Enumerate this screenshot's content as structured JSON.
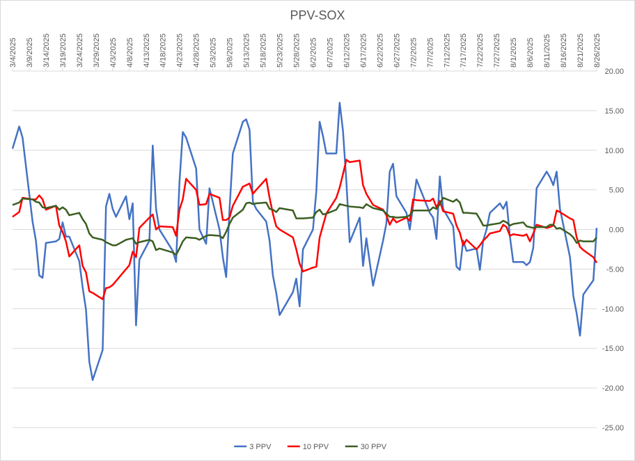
{
  "chart_data": {
    "type": "line",
    "title": "PPV-SOX",
    "x": [
      "3/4/2025",
      "3/6/2025",
      "3/7/2025",
      "3/10/2025",
      "3/11/2025",
      "3/12/2025",
      "3/13/2025",
      "3/14/2025",
      "3/17/2025",
      "3/18/2025",
      "3/19/2025",
      "3/20/2025",
      "3/21/2025",
      "3/24/2025",
      "3/25/2025",
      "3/26/2025",
      "3/27/2025",
      "3/28/2025",
      "3/31/2025",
      "4/1/2025",
      "4/2/2025",
      "4/3/2025",
      "4/4/2025",
      "4/7/2025",
      "4/8/2025",
      "4/9/2025",
      "4/10/2025",
      "4/11/2025",
      "4/14/2025",
      "4/15/2025",
      "4/16/2025",
      "4/17/2025",
      "4/21/2025",
      "4/22/2025",
      "4/23/2025",
      "4/24/2025",
      "4/25/2025",
      "4/28/2025",
      "4/29/2025",
      "5/1/2025",
      "5/2/2025",
      "5/5/2025",
      "5/6/2025",
      "5/7/2025",
      "5/8/2025",
      "5/9/2025",
      "5/12/2025",
      "5/13/2025",
      "5/14/2025",
      "5/15/2025",
      "5/16/2025",
      "5/19/2025",
      "5/20/2025",
      "5/21/2025",
      "5/22/2025",
      "5/23/2025",
      "5/27/2025",
      "5/28/2025",
      "5/29/2025",
      "5/30/2025",
      "6/2/2025",
      "6/3/2025",
      "6/4/2025",
      "6/5/2025",
      "6/6/2025",
      "6/9/2025",
      "6/10/2025",
      "6/11/2025",
      "6/12/2025",
      "6/13/2025",
      "6/16/2025",
      "6/17/2025",
      "6/18/2025",
      "6/20/2025",
      "6/23/2025",
      "6/24/2025",
      "6/25/2025",
      "6/26/2025",
      "6/27/2025",
      "6/30/2025",
      "7/1/2025",
      "7/2/2025",
      "7/3/2025",
      "7/7/2025",
      "7/8/2025",
      "7/9/2025",
      "7/10/2025",
      "7/11/2025",
      "7/14/2025",
      "7/15/2025",
      "7/16/2025",
      "7/17/2025",
      "7/18/2025",
      "7/21/2025",
      "7/22/2025",
      "7/23/2025",
      "7/24/2025",
      "7/25/2025",
      "7/28/2025",
      "7/29/2025",
      "7/30/2025",
      "7/31/2025",
      "8/1/2025",
      "8/4/2025",
      "8/5/2025",
      "8/6/2025",
      "8/7/2025",
      "8/8/2025",
      "8/11/2025",
      "8/12/2025",
      "8/13/2025",
      "8/14/2025",
      "8/15/2025",
      "8/18/2025",
      "8/19/2025",
      "8/20/2025",
      "8/21/2025",
      "8/22/2025",
      "8/25/2025",
      "8/26/2025"
    ],
    "series": [
      {
        "name": "3 PPV",
        "color": "#4472c4",
        "values": [
          10.2,
          13.0,
          11.6,
          1.0,
          -1.4,
          -5.8,
          -6.1,
          -1.7,
          -1.5,
          -1.2,
          0.9,
          -0.9,
          -0.9,
          -4.0,
          -7.3,
          -10.1,
          -16.7,
          -19.0,
          -15.2,
          2.9,
          4.5,
          2.6,
          1.6,
          4.2,
          1.3,
          3.3,
          -12.1,
          -3.8,
          -1.4,
          10.6,
          2.6,
          0.0,
          -2.7,
          -4.1,
          5.9,
          12.3,
          11.6,
          7.7,
          0.0,
          -1.8,
          5.2,
          0.0,
          -3.5,
          -6.0,
          2.5,
          9.6,
          13.6,
          13.9,
          12.6,
          3.5,
          2.6,
          1.0,
          -1.4,
          -5.8,
          -8.0,
          -10.8,
          -7.9,
          -6.2,
          -9.7,
          -2.5,
          0.0,
          4.8,
          13.6,
          11.8,
          9.6,
          9.6,
          16.0,
          12.4,
          6.1,
          -1.6,
          1.5,
          -4.6,
          -1.1,
          -7.1,
          -1.4,
          0.8,
          7.3,
          8.3,
          4.2,
          2.1,
          0.0,
          3.0,
          6.3,
          2.1,
          1.5,
          -1.2,
          6.7,
          2.6,
          0.4,
          -4.7,
          -5.1,
          -1.4,
          -2.7,
          -2.4,
          -5.1,
          -1.4,
          0.0,
          2.1,
          3.3,
          2.6,
          3.5,
          -0.9,
          -4.1,
          -4.1,
          -4.5,
          -4.1,
          -2.3,
          5.2,
          7.3,
          6.6,
          5.6,
          7.3,
          2.6,
          -3.5,
          -8.4,
          -10.6,
          -13.4,
          -8.2,
          -6.4,
          0.2
        ]
      },
      {
        "name": "10 PPV",
        "color": "#ff0000",
        "values": [
          1.6,
          2.2,
          4.0,
          3.8,
          3.8,
          4.3,
          3.8,
          2.5,
          3.0,
          0.5,
          -0.3,
          -1.5,
          -3.4,
          -2.0,
          -4.6,
          -5.4,
          -7.8,
          -8.0,
          -8.8,
          -7.4,
          -7.3,
          -7.0,
          -6.5,
          -5.0,
          -4.5,
          -2.8,
          -3.5,
          0.2,
          1.5,
          1.9,
          0.0,
          0.4,
          0.3,
          -0.8,
          2.5,
          3.8,
          6.4,
          5.0,
          3.1,
          3.2,
          4.5,
          4.0,
          1.2,
          1.2,
          1.5,
          3.0,
          5.4,
          5.6,
          5.8,
          4.5,
          5.0,
          6.4,
          4.0,
          2.0,
          0.4,
          0.0,
          -1.0,
          -2.5,
          -4.3,
          -5.3,
          -4.8,
          -4.7,
          -1.0,
          0.5,
          2.0,
          4.0,
          5.3,
          7.0,
          8.8,
          8.5,
          8.7,
          5.6,
          4.5,
          3.1,
          2.5,
          1.8,
          0.6,
          1.4,
          0.9,
          1.5,
          1.1,
          3.8,
          3.7,
          3.6,
          3.9,
          2.8,
          3.6,
          2.3,
          2.0,
          0.5,
          -0.4,
          -2.0,
          -1.3,
          -2.5,
          -2.0,
          -1.4,
          -1.0,
          -0.5,
          -0.2,
          0.6,
          0.3,
          -0.8,
          -0.6,
          -0.8,
          -0.6,
          -1.5,
          -0.5,
          0.6,
          0.2,
          0.3,
          0.5,
          2.4,
          2.2,
          1.4,
          1.2,
          -1.0,
          -2.2,
          -2.6,
          -3.5,
          -4.2
        ]
      },
      {
        "name": "30 PPV",
        "color": "#3b5e20",
        "values": [
          3.1,
          3.4,
          3.9,
          3.8,
          3.5,
          3.4,
          2.8,
          2.7,
          3.0,
          2.5,
          2.8,
          2.5,
          1.8,
          2.1,
          1.3,
          0.7,
          -0.5,
          -1.0,
          -1.3,
          -1.6,
          -1.8,
          -2.0,
          -2.0,
          -1.3,
          -1.2,
          -1.1,
          -1.8,
          -1.6,
          -1.3,
          -1.5,
          -2.6,
          -2.4,
          -2.9,
          -3.2,
          -2.4,
          -1.5,
          -1.0,
          -1.1,
          -1.3,
          -0.8,
          -0.7,
          -0.8,
          -1.1,
          -0.3,
          0.7,
          1.5,
          2.5,
          3.3,
          3.4,
          3.2,
          3.3,
          3.4,
          2.6,
          2.5,
          2.2,
          2.7,
          2.4,
          1.4,
          1.4,
          1.4,
          1.5,
          2.2,
          2.5,
          1.9,
          2.0,
          2.5,
          3.2,
          3.1,
          3.0,
          2.9,
          2.8,
          2.7,
          3.2,
          2.7,
          2.4,
          2.0,
          1.6,
          1.6,
          1.5,
          1.6,
          1.8,
          2.4,
          2.4,
          2.4,
          2.8,
          2.6,
          3.2,
          4.0,
          3.5,
          3.8,
          3.4,
          2.1,
          2.1,
          2.0,
          1.3,
          0.5,
          0.5,
          0.6,
          0.8,
          1.1,
          0.9,
          0.5,
          0.7,
          0.9,
          0.4,
          0.3,
          0.2,
          0.3,
          0.3,
          0.6,
          0.6,
          0.1,
          0.2,
          -0.6,
          -1.0,
          -1.7,
          -1.4,
          -1.5,
          -1.5,
          -1.0
        ]
      }
    ],
    "xlim": [
      "3/4/2025",
      "8/26/2025"
    ],
    "xticks": [
      "3/4/2025",
      "3/9/2025",
      "3/14/2025",
      "3/19/2025",
      "3/24/2025",
      "3/29/2025",
      "4/3/2025",
      "4/8/2025",
      "4/13/2025",
      "4/18/2025",
      "4/23/2025",
      "4/28/2025",
      "5/3/2025",
      "5/8/2025",
      "5/13/2025",
      "5/18/2025",
      "5/23/2025",
      "5/28/2025",
      "6/2/2025",
      "6/7/2025",
      "6/12/2025",
      "6/17/2025",
      "6/22/2025",
      "6/27/2025",
      "7/2/2025",
      "7/7/2025",
      "7/12/2025",
      "7/17/2025",
      "7/22/2025",
      "7/27/2025",
      "8/1/2025",
      "8/6/2025",
      "8/11/2025",
      "8/16/2025",
      "8/21/2025",
      "8/26/2025"
    ],
    "ylim": [
      -25,
      20
    ],
    "yticks": [
      {
        "value": 20,
        "label": "20.00"
      },
      {
        "value": 15,
        "label": "15.00"
      },
      {
        "value": 10,
        "label": "10.00"
      },
      {
        "value": 5,
        "label": "5.00"
      },
      {
        "value": 0,
        "label": "0.00"
      },
      {
        "value": -5,
        "label": "-5.00"
      },
      {
        "value": -10,
        "label": "-10.00"
      },
      {
        "value": -15,
        "label": "-15.00"
      },
      {
        "value": -20,
        "label": "-20.00"
      },
      {
        "value": -25,
        "label": "-25.00"
      }
    ],
    "grid": true,
    "legend": "bottom"
  }
}
